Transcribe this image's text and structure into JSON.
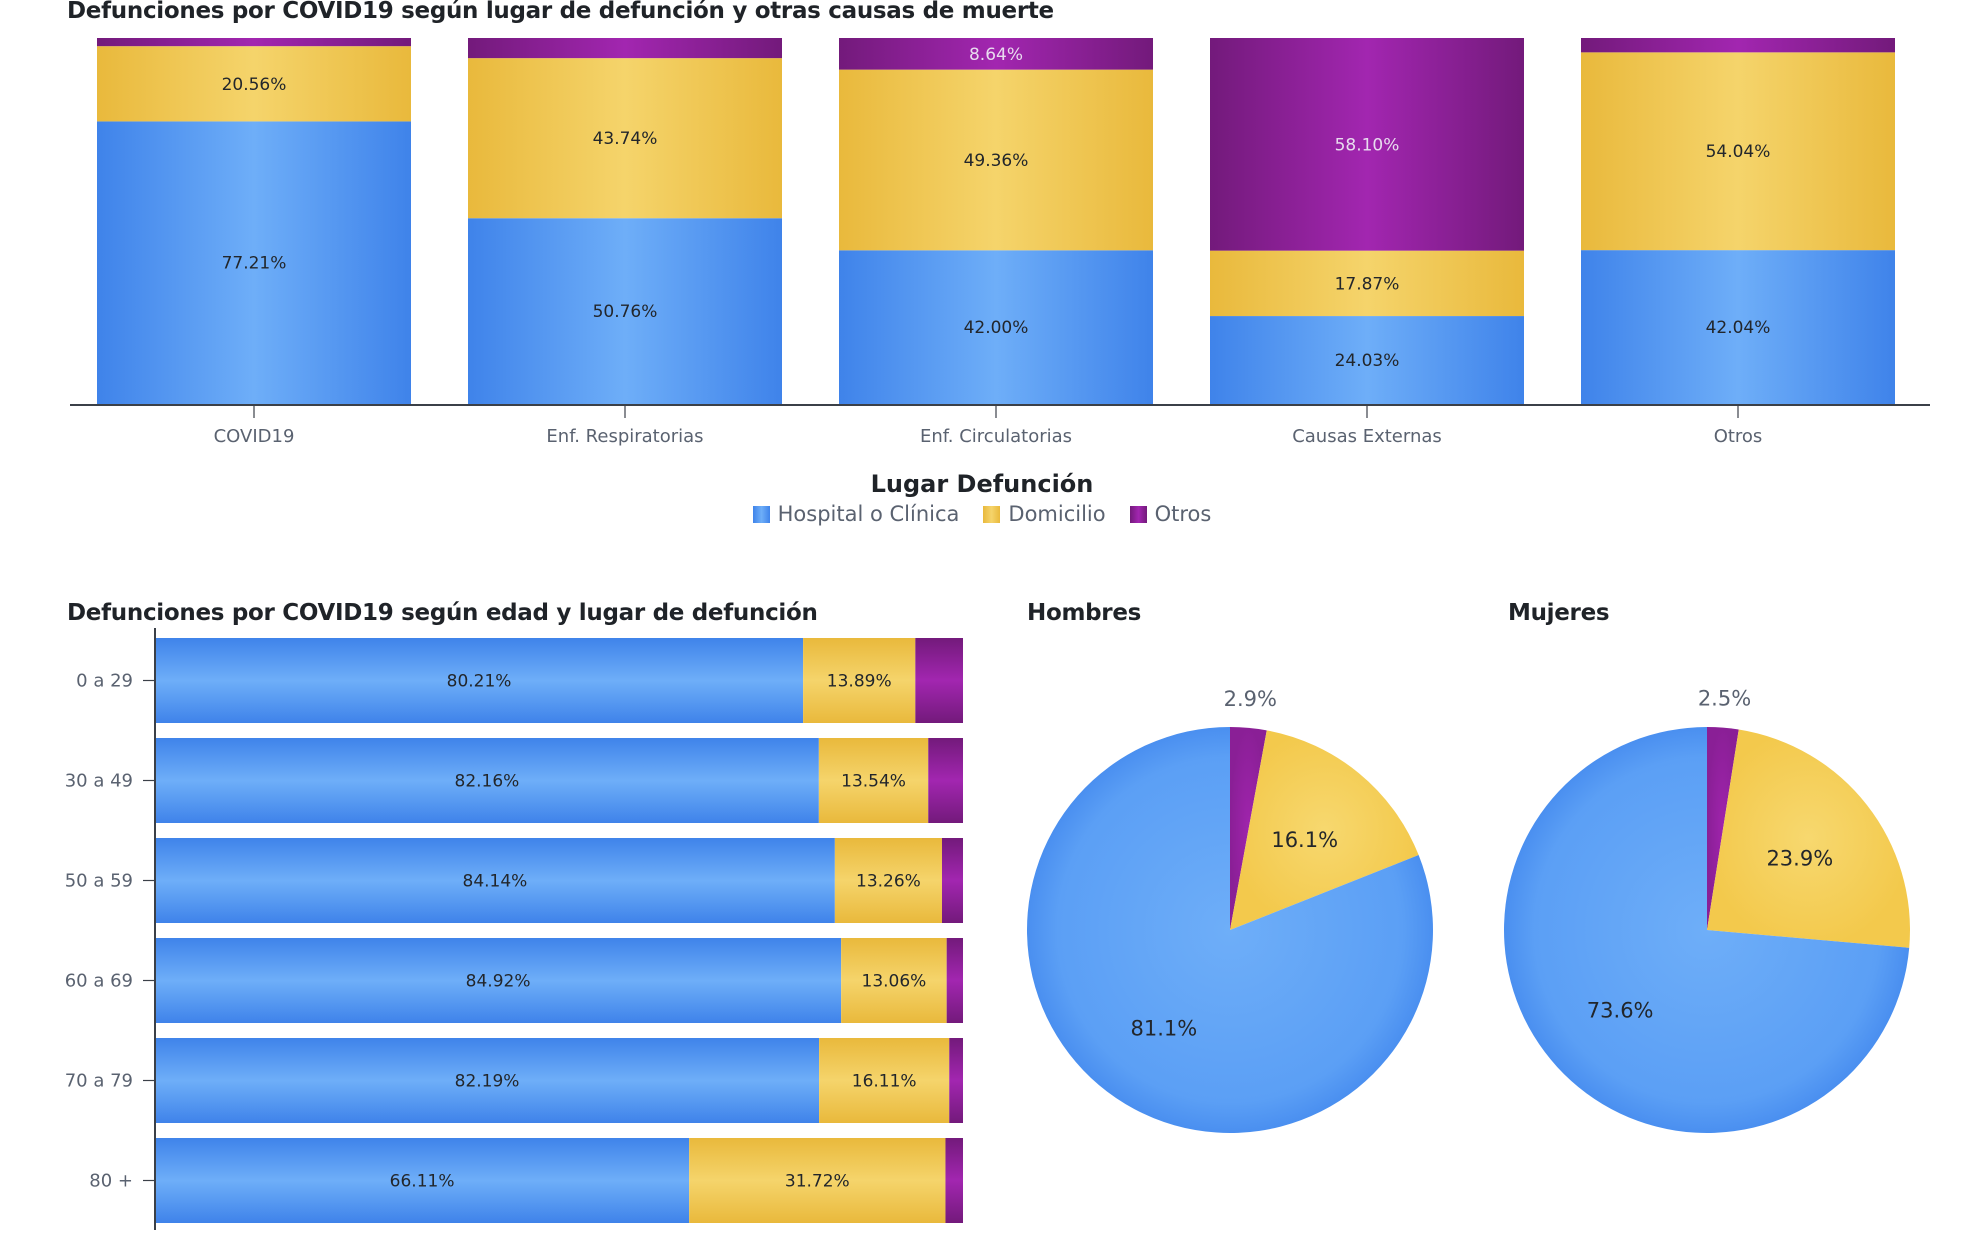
{
  "colors": {
    "hospital": "#4f92f0",
    "hospital_light": "#6eaef8",
    "hospital_dark": "#3f83ea",
    "domicilio": "#f5d367",
    "domicilio_dark": "#e9b93c",
    "otros": "#9f24ac",
    "otros_dark": "#731a7b"
  },
  "legend": {
    "title": "Lugar Defunción",
    "items": [
      {
        "label": "Hospital o Clínica",
        "key": "hospital"
      },
      {
        "label": "Domicilio",
        "key": "domicilio"
      },
      {
        "label": "Otros",
        "key": "otros"
      }
    ]
  },
  "chart_data": [
    {
      "id": "causes",
      "type": "bar",
      "stacked": true,
      "orientation": "vertical",
      "title": "Defunciones por COVID19 según lugar de defunción y otras causas de muerte",
      "xlabel": "",
      "ylabel": "",
      "ylim": [
        0,
        100
      ],
      "grid": false,
      "legend_position": "bottom-center",
      "categories": [
        "COVID19",
        "Enf. Respiratorias",
        "Enf. Circulatorias",
        "Causas Externas",
        "Otros"
      ],
      "series": [
        {
          "name": "Hospital o Clínica",
          "key": "hospital",
          "values": [
            77.21,
            50.76,
            42.0,
            24.03,
            42.04
          ],
          "labels": [
            "77.21%",
            "50.76%",
            "42.00%",
            "24.03%",
            "42.04%"
          ]
        },
        {
          "name": "Domicilio",
          "key": "domicilio",
          "values": [
            20.56,
            43.74,
            49.36,
            17.87,
            54.04
          ],
          "labels": [
            "20.56%",
            "43.74%",
            "49.36%",
            "17.87%",
            "54.04%"
          ]
        },
        {
          "name": "Otros",
          "key": "otros",
          "values": [
            2.23,
            5.5,
            8.64,
            58.1,
            3.92
          ],
          "labels": [
            "",
            "",
            "8.64%",
            "58.10%",
            ""
          ]
        }
      ]
    },
    {
      "id": "ages",
      "type": "bar",
      "stacked": true,
      "orientation": "horizontal",
      "title": "Defunciones por COVID19 según edad y lugar de defunción",
      "xlabel": "",
      "ylabel": "",
      "xlim": [
        0,
        100
      ],
      "grid": false,
      "categories": [
        "0 a 29",
        "30 a 49",
        "50 a 59",
        "60 a 69",
        "70 a 79",
        "80 +"
      ],
      "series": [
        {
          "name": "Hospital o Clínica",
          "key": "hospital",
          "values": [
            80.21,
            82.16,
            84.14,
            84.92,
            82.19,
            66.11
          ],
          "labels": [
            "80.21%",
            "82.16%",
            "84.14%",
            "84.92%",
            "82.19%",
            "66.11%"
          ]
        },
        {
          "name": "Domicilio",
          "key": "domicilio",
          "values": [
            13.89,
            13.54,
            13.26,
            13.06,
            16.11,
            31.72
          ],
          "labels": [
            "13.89%",
            "13.54%",
            "13.26%",
            "13.06%",
            "16.11%",
            "31.72%"
          ]
        },
        {
          "name": "Otros",
          "key": "otros",
          "values": [
            5.9,
            4.3,
            2.6,
            2.02,
            1.7,
            2.17
          ],
          "labels": [
            "",
            "",
            "",
            "",
            "",
            ""
          ]
        }
      ]
    },
    {
      "id": "men",
      "type": "pie",
      "title": "Hombres",
      "slices": [
        {
          "name": "Otros",
          "key": "otros",
          "value": 2.9,
          "label": "2.9%",
          "outside": true
        },
        {
          "name": "Domicilio",
          "key": "domicilio",
          "value": 16.1,
          "label": "16.1%",
          "outside": false
        },
        {
          "name": "Hospital o Clínica",
          "key": "hospital",
          "value": 81.1,
          "label": "81.1%",
          "outside": false
        }
      ]
    },
    {
      "id": "women",
      "type": "pie",
      "title": "Mujeres",
      "slices": [
        {
          "name": "Otros",
          "key": "otros",
          "value": 2.5,
          "label": "2.5%",
          "outside": true
        },
        {
          "name": "Domicilio",
          "key": "domicilio",
          "value": 23.9,
          "label": "23.9%",
          "outside": false
        },
        {
          "name": "Hospital o Clínica",
          "key": "hospital",
          "value": 73.6,
          "label": "73.6%",
          "outside": false
        }
      ]
    }
  ]
}
